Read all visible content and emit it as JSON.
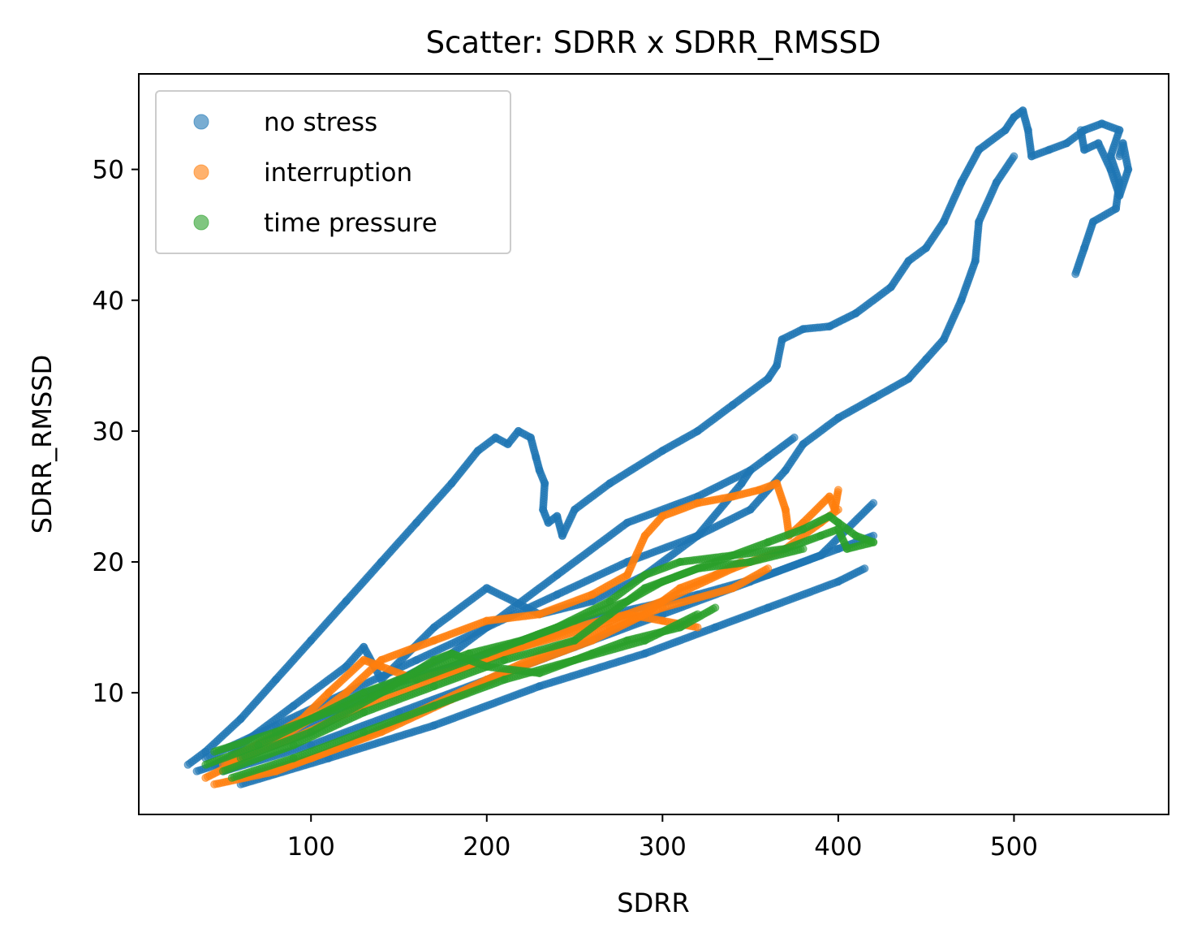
{
  "chart_data": {
    "type": "scatter",
    "title": "Scatter: SDRR x SDRR_RMSSD",
    "xlabel": "SDRR",
    "ylabel": "SDRR_RMSSD",
    "xlim": [
      2,
      588
    ],
    "ylim": [
      0.7,
      57.3
    ],
    "x_ticks": [
      100,
      200,
      300,
      400,
      500
    ],
    "y_ticks": [
      10,
      20,
      30,
      40,
      50
    ],
    "grid": false,
    "legend_position": "top-left",
    "series": [
      {
        "name": "no stress",
        "color": "#1f77b4",
        "paths": [
          [
            [
              30,
              4.5
            ],
            [
              40,
              5.5
            ],
            [
              60,
              8
            ],
            [
              80,
              11
            ],
            [
              100,
              14
            ],
            [
              120,
              17
            ],
            [
              140,
              20
            ],
            [
              160,
              23
            ],
            [
              180,
              26
            ],
            [
              195,
              28.5
            ],
            [
              205,
              29.5
            ],
            [
              212,
              29
            ],
            [
              218,
              30
            ],
            [
              225,
              29.5
            ],
            [
              228,
              28
            ],
            [
              230,
              27
            ],
            [
              233,
              26
            ],
            [
              232,
              24
            ],
            [
              235,
              23
            ],
            [
              240,
              23.5
            ],
            [
              243,
              22
            ],
            [
              250,
              24
            ],
            [
              270,
              26
            ],
            [
              300,
              28.5
            ],
            [
              320,
              30
            ],
            [
              340,
              32
            ],
            [
              360,
              34
            ],
            [
              365,
              35
            ],
            [
              368,
              37
            ],
            [
              380,
              37.8
            ],
            [
              395,
              38
            ],
            [
              410,
              39
            ],
            [
              430,
              41
            ],
            [
              440,
              43
            ],
            [
              450,
              44
            ],
            [
              460,
              46
            ],
            [
              470,
              49
            ],
            [
              480,
              51.5
            ],
            [
              495,
              53
            ],
            [
              500,
              54
            ],
            [
              505,
              54.5
            ],
            [
              508,
              53
            ],
            [
              510,
              51
            ],
            [
              520,
              51.5
            ],
            [
              530,
              52
            ],
            [
              540,
              53
            ],
            [
              550,
              53.5
            ],
            [
              560,
              53
            ],
            [
              555,
              51
            ],
            [
              560,
              49
            ],
            [
              558,
              47
            ],
            [
              545,
              46
            ],
            [
              540,
              44
            ],
            [
              535,
              42
            ]
          ],
          [
            [
              560,
              51
            ],
            [
              562,
              52
            ],
            [
              565,
              50
            ],
            [
              560,
              48
            ],
            [
              555,
              50
            ],
            [
              548,
              52
            ],
            [
              540,
              51.5
            ],
            [
              538,
              53
            ]
          ],
          [
            [
              40,
              5
            ],
            [
              80,
              7.5
            ],
            [
              120,
              10
            ],
            [
              160,
              12.5
            ],
            [
              200,
              15
            ],
            [
              240,
              17.5
            ],
            [
              280,
              20
            ],
            [
              320,
              22
            ],
            [
              350,
              24
            ],
            [
              370,
              27
            ],
            [
              380,
              29
            ],
            [
              400,
              31
            ],
            [
              420,
              32.5
            ],
            [
              440,
              34
            ],
            [
              450,
              35.5
            ],
            [
              460,
              37
            ],
            [
              470,
              40
            ],
            [
              478,
              43
            ],
            [
              480,
              46
            ],
            [
              490,
              49
            ],
            [
              500,
              51
            ]
          ],
          [
            [
              35,
              4
            ],
            [
              80,
              6
            ],
            [
              120,
              9
            ],
            [
              150,
              11
            ],
            [
              180,
              13
            ],
            [
              200,
              15
            ],
            [
              240,
              19
            ],
            [
              280,
              23
            ],
            [
              320,
              25
            ],
            [
              350,
              27
            ],
            [
              360,
              28
            ],
            [
              375,
              29.5
            ]
          ],
          [
            [
              50,
              4
            ],
            [
              100,
              6
            ],
            [
              150,
              8.5
            ],
            [
              200,
              11
            ],
            [
              250,
              13.5
            ],
            [
              300,
              16
            ],
            [
              350,
              18.5
            ],
            [
              390,
              20.5
            ],
            [
              420,
              24.5
            ]
          ],
          [
            [
              60,
              3
            ],
            [
              110,
              5
            ],
            [
              170,
              7.5
            ],
            [
              230,
              10.5
            ],
            [
              290,
              13
            ],
            [
              330,
              15
            ],
            [
              360,
              16.5
            ],
            [
              400,
              18.5
            ],
            [
              415,
              19.5
            ]
          ],
          [
            [
              55,
              5.5
            ],
            [
              90,
              9
            ],
            [
              120,
              12
            ],
            [
              130,
              13.5
            ],
            [
              140,
              11
            ],
            [
              170,
              15
            ],
            [
              200,
              18
            ],
            [
              230,
              16
            ],
            [
              260,
              17
            ],
            [
              290,
              19
            ],
            [
              320,
              22
            ],
            [
              345,
              26
            ],
            [
              350,
              27
            ]
          ],
          [
            [
              45,
              4.5
            ],
            [
              85,
              7
            ],
            [
              130,
              10
            ],
            [
              180,
              12
            ],
            [
              220,
              14
            ],
            [
              270,
              16
            ],
            [
              320,
              17.5
            ],
            [
              360,
              19
            ],
            [
              400,
              21
            ],
            [
              420,
              22
            ]
          ]
        ]
      },
      {
        "name": "interruption",
        "color": "#ff7f0e",
        "paths": [
          [
            [
              40,
              3.5
            ],
            [
              70,
              5.5
            ],
            [
              100,
              8
            ],
            [
              120,
              10
            ],
            [
              140,
              12.5
            ],
            [
              170,
              14
            ],
            [
              200,
              15.5
            ],
            [
              230,
              16
            ],
            [
              260,
              17.5
            ],
            [
              280,
              19
            ],
            [
              290,
              22
            ],
            [
              300,
              23.5
            ],
            [
              320,
              24.5
            ],
            [
              340,
              25
            ],
            [
              355,
              25.5
            ],
            [
              365,
              26
            ],
            [
              370,
              24
            ],
            [
              372,
              22
            ],
            [
              380,
              23
            ],
            [
              395,
              25
            ],
            [
              398,
              24
            ],
            [
              400,
              25.5
            ]
          ],
          [
            [
              45,
              3
            ],
            [
              80,
              4
            ],
            [
              120,
              6
            ],
            [
              160,
              8.5
            ],
            [
              200,
              11
            ],
            [
              240,
              13.5
            ],
            [
              270,
              15
            ],
            [
              300,
              16.5
            ],
            [
              340,
              18
            ],
            [
              360,
              19.5
            ]
          ],
          [
            [
              50,
              4.5
            ],
            [
              90,
              6.5
            ],
            [
              130,
              9
            ],
            [
              170,
              11
            ],
            [
              210,
              13
            ],
            [
              250,
              15
            ],
            [
              280,
              16
            ],
            [
              300,
              15.5
            ],
            [
              320,
              15
            ]
          ],
          [
            [
              60,
              3.5
            ],
            [
              100,
              5
            ],
            [
              140,
              7
            ],
            [
              180,
              9.5
            ],
            [
              220,
              12
            ],
            [
              260,
              14
            ],
            [
              290,
              16
            ],
            [
              310,
              18
            ],
            [
              330,
              19
            ],
            [
              345,
              20
            ]
          ],
          [
            [
              55,
              5
            ],
            [
              95,
              8
            ],
            [
              110,
              10
            ],
            [
              130,
              12.5
            ],
            [
              140,
              12
            ],
            [
              160,
              11
            ],
            [
              190,
              12
            ],
            [
              220,
              13.5
            ],
            [
              260,
              15
            ],
            [
              300,
              17
            ],
            [
              340,
              19.5
            ],
            [
              370,
              21
            ],
            [
              390,
              23
            ],
            [
              400,
              24
            ]
          ]
        ]
      },
      {
        "name": "time pressure",
        "color": "#2ca02c",
        "paths": [
          [
            [
              40,
              4.5
            ],
            [
              70,
              6
            ],
            [
              100,
              8
            ],
            [
              130,
              10
            ],
            [
              160,
              11.5
            ],
            [
              190,
              13
            ],
            [
              220,
              14
            ],
            [
              250,
              15.5
            ],
            [
              280,
              17
            ],
            [
              300,
              18.5
            ],
            [
              330,
              20
            ],
            [
              360,
              21.5
            ],
            [
              380,
              22.5
            ],
            [
              395,
              23.5
            ],
            [
              400,
              23
            ],
            [
              410,
              22
            ],
            [
              420,
              21.5
            ],
            [
              405,
              21
            ],
            [
              400,
              22.5
            ]
          ],
          [
            [
              45,
              5.5
            ],
            [
              80,
              7
            ],
            [
              120,
              9
            ],
            [
              160,
              11
            ],
            [
              200,
              13
            ],
            [
              240,
              15
            ],
            [
              270,
              17
            ],
            [
              290,
              19
            ],
            [
              310,
              20
            ],
            [
              340,
              20.5
            ],
            [
              370,
              21
            ],
            [
              390,
              22
            ],
            [
              400,
              22.5
            ]
          ],
          [
            [
              50,
              4
            ],
            [
              90,
              6
            ],
            [
              130,
              8.5
            ],
            [
              170,
              10.5
            ],
            [
              210,
              12.5
            ],
            [
              250,
              14
            ],
            [
              270,
              16
            ],
            [
              290,
              18
            ],
            [
              320,
              19.5
            ],
            [
              350,
              20
            ],
            [
              380,
              21
            ]
          ],
          [
            [
              60,
              5
            ],
            [
              100,
              7
            ],
            [
              140,
              10
            ],
            [
              170,
              12.5
            ],
            [
              180,
              13
            ],
            [
              200,
              12
            ],
            [
              230,
              11.5
            ],
            [
              260,
              13
            ],
            [
              280,
              14
            ],
            [
              310,
              15
            ],
            [
              330,
              16.5
            ]
          ],
          [
            [
              55,
              3.5
            ],
            [
              90,
              5
            ],
            [
              130,
              7
            ],
            [
              170,
              9
            ],
            [
              210,
              11
            ],
            [
              250,
              12.5
            ],
            [
              290,
              14
            ],
            [
              320,
              16
            ]
          ]
        ]
      }
    ]
  }
}
